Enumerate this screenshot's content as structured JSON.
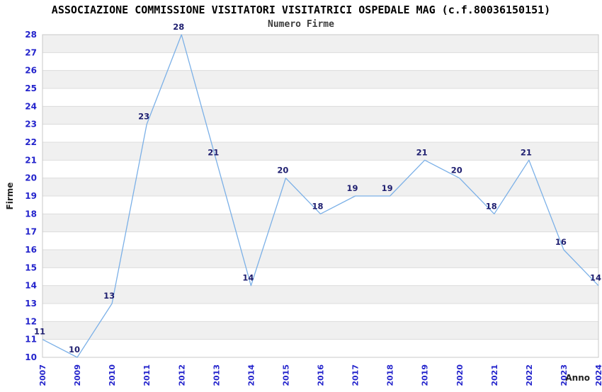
{
  "chart_data": {
    "type": "line",
    "title": "ASSOCIAZIONE COMMISSIONE VISITATORI VISITATRICI OSPEDALE MAG (c.f.80036150151)",
    "subtitle": "Numero Firme",
    "xlabel": "Anno",
    "ylabel": "Firme",
    "categories": [
      "2007",
      "2009",
      "2010",
      "2011",
      "2012",
      "2013",
      "2014",
      "2015",
      "2016",
      "2017",
      "2018",
      "2019",
      "2020",
      "2021",
      "2022",
      "2023",
      "2024"
    ],
    "values": [
      11,
      10,
      13,
      23,
      28,
      21,
      14,
      20,
      18,
      19,
      19,
      21,
      20,
      18,
      21,
      16,
      14
    ],
    "ylim": [
      10,
      28
    ],
    "ytick_step": 1,
    "grid": "horizontal-bands",
    "legend_position": "none",
    "point_markers": false,
    "x_tick_rotation": -90,
    "colors": {
      "line": "#7bb0e7",
      "tick_labels": "#2424cc",
      "point_labels": "#1f1f70",
      "band": "#f0f0f0",
      "band_alt": "#ffffff",
      "gridline": "#dcdcdc",
      "plot_border": "#c8c8c8",
      "title": "#000000",
      "subtitle": "#3c3c3c",
      "axis_titles": "#222222",
      "background": "#ffffff"
    }
  }
}
